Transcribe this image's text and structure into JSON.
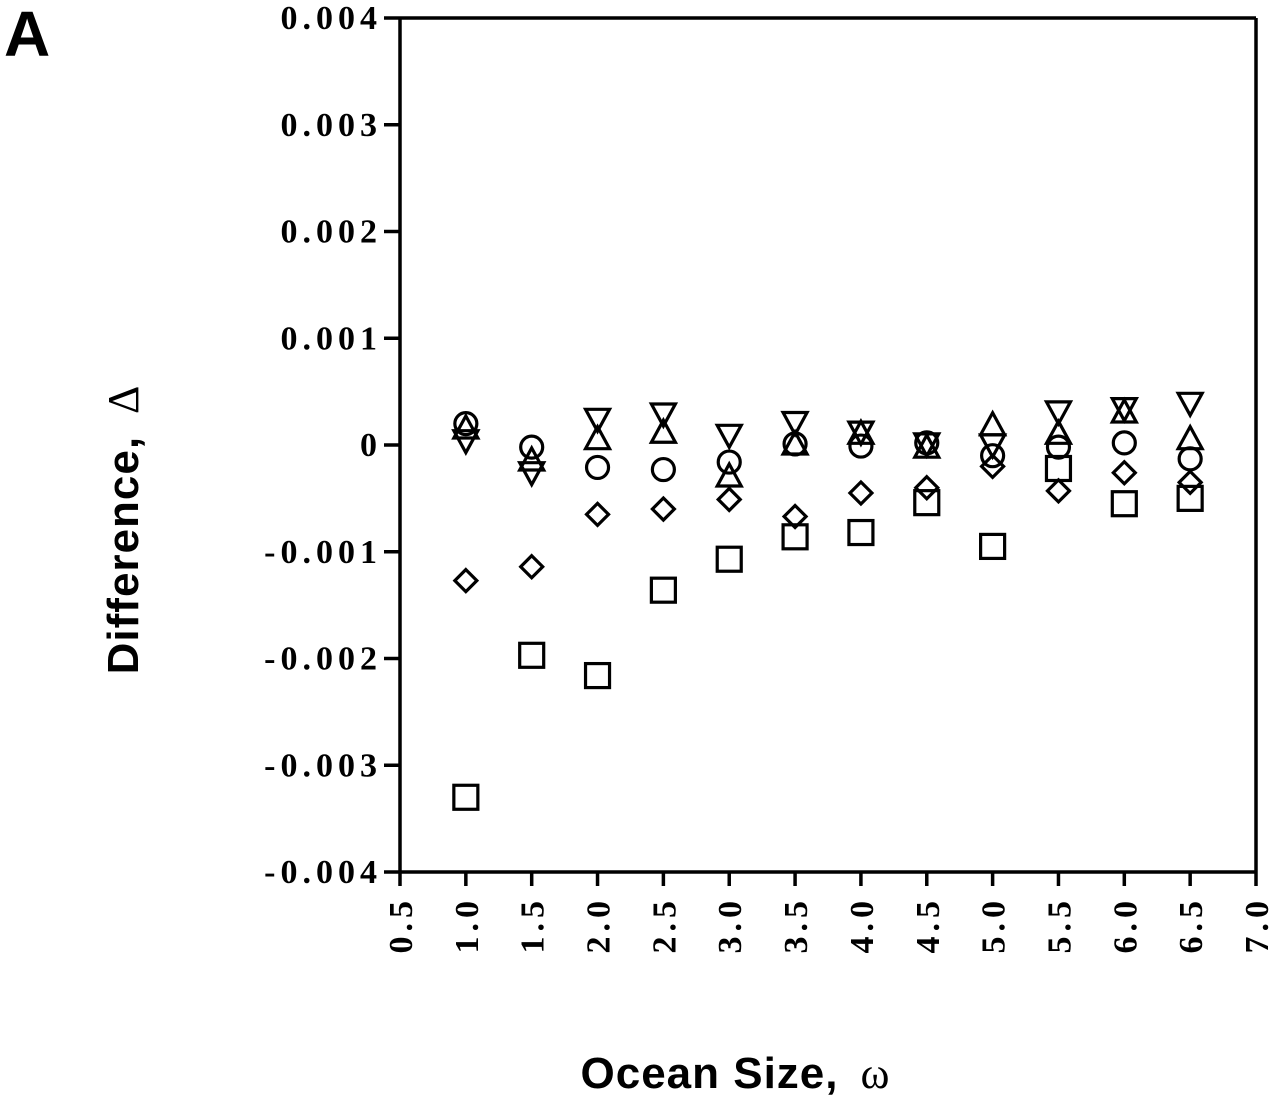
{
  "panel_label": "A",
  "chart_data": {
    "type": "scatter",
    "title": "",
    "xlabel": "Ocean Size,",
    "xlabel_symbol": "ω",
    "ylabel": "Difference,",
    "ylabel_symbol": "Δ",
    "xlim": [
      0.5,
      7.0
    ],
    "ylim": [
      -0.004,
      0.004
    ],
    "x_ticks": [
      "0.5",
      "1.0",
      "1.5",
      "2.0",
      "2.5",
      "3.0",
      "3.5",
      "4.0",
      "4.5",
      "5.0",
      "5.5",
      "6.0",
      "6.5",
      "7.0"
    ],
    "y_ticks": [
      "0.004",
      "0.003",
      "0.002",
      "0.001",
      "0",
      "-0.001",
      "-0.002",
      "-0.003",
      "-0.004"
    ],
    "grid": false,
    "legend": "none",
    "x": [
      1.0,
      1.5,
      2.0,
      2.5,
      3.0,
      3.5,
      4.0,
      4.5,
      5.0,
      5.5,
      6.0,
      6.5
    ],
    "series": [
      {
        "marker": "square",
        "values": [
          -0.0033,
          -0.00197,
          -0.00216,
          -0.00136,
          -0.00107,
          -0.00086,
          -0.00082,
          -0.00054,
          -0.00095,
          -0.00022,
          -0.00055,
          -0.0005
        ]
      },
      {
        "marker": "diamond",
        "values": [
          -0.00127,
          -0.00114,
          -0.00065,
          -0.0006,
          -0.00051,
          -0.00067,
          -0.00045,
          -0.0004,
          -0.0002,
          -0.00043,
          -0.00026,
          -0.00035
        ]
      },
      {
        "marker": "circle",
        "values": [
          0.0002,
          -2e-05,
          -0.00021,
          -0.00023,
          -0.00016,
          1e-05,
          -1e-05,
          2e-05,
          -0.0001,
          -2e-05,
          2e-05,
          -0.00013
        ]
      },
      {
        "marker": "triangle",
        "values": [
          0.00015,
          -0.00015,
          5e-05,
          0.00011,
          -0.0003,
          0.0,
          0.0001,
          -3e-05,
          0.00018,
          0.0001,
          0.0003,
          5e-05
        ]
      },
      {
        "marker": "inverted-triangle",
        "values": [
          5e-05,
          -0.00025,
          0.00025,
          0.0003,
          0.0001,
          0.00022,
          0.00013,
          2e-05,
          1e-05,
          0.00032,
          0.00035,
          0.0004
        ]
      }
    ]
  }
}
